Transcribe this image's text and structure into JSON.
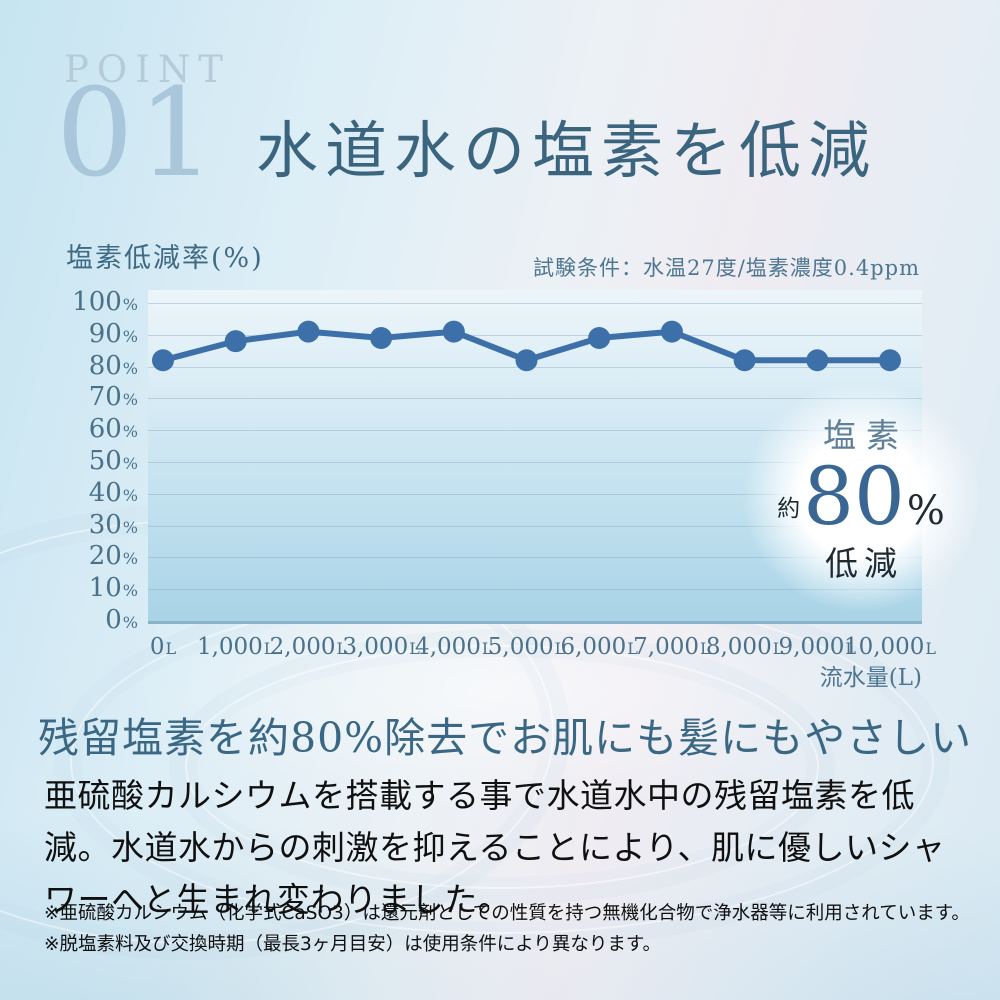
{
  "point": {
    "eyebrow": "POINT",
    "number": "01"
  },
  "title": "水道水の塩素を低減",
  "chart": {
    "y_axis_title": "塩素低減率(%)",
    "conditions": "試験条件：水温27度/塩素濃度0.4ppm",
    "x_axis_title": "流水量(L)"
  },
  "chart_data": {
    "type": "line",
    "title": "塩素低減率(%)",
    "xlabel": "流水量(L)",
    "ylabel": "塩素低減率(%)",
    "categories": [
      "0L",
      "1,000L",
      "2,000L",
      "3,000L",
      "4,000L",
      "5,000L",
      "6,000L",
      "7,000L",
      "8,000L",
      "9,000L",
      "10,000L"
    ],
    "values": [
      82,
      88,
      91,
      89,
      91,
      82,
      89,
      91,
      82,
      82,
      82
    ],
    "y_ticks": [
      "100",
      "90",
      "80",
      "70",
      "60",
      "50",
      "40",
      "30",
      "20",
      "10",
      "0"
    ],
    "y_tick_unit": "%",
    "x_tick_unit": "L",
    "ylim": [
      0,
      100
    ],
    "grid": true,
    "legend": "none",
    "line_color": "#3d70a9",
    "marker_radius": 11,
    "annotation": "塩素 約80% 低減"
  },
  "badge": {
    "top": "塩素",
    "prefix": "約",
    "value": "80",
    "unit": "%",
    "bottom": "低減"
  },
  "headline": "残留塩素を約80%除去でお肌にも髪にもやさしい",
  "body": "亜硫酸カルシウムを搭載する事で水道水中の残留塩素を低減。水道水からの刺激を抑えることにより、肌に優しいシャワーへと生まれ変わりました。",
  "notes": [
    "※亜硫酸カルシウム（化学式CaSO3）は還元剤としての性質を持つ無機化合物で浄水器等に利用されています。",
    "※脱塩素料及び交換時期（最長3ヶ月目安）は使用条件により異なります。"
  ],
  "colors": {
    "accent_line": "#3d70a9",
    "title_blue": "#3b657f",
    "axis_text": "#4a7189",
    "badge_value_blue": "#3a6694",
    "plot_bottom_blue": "#a9d3e6"
  }
}
